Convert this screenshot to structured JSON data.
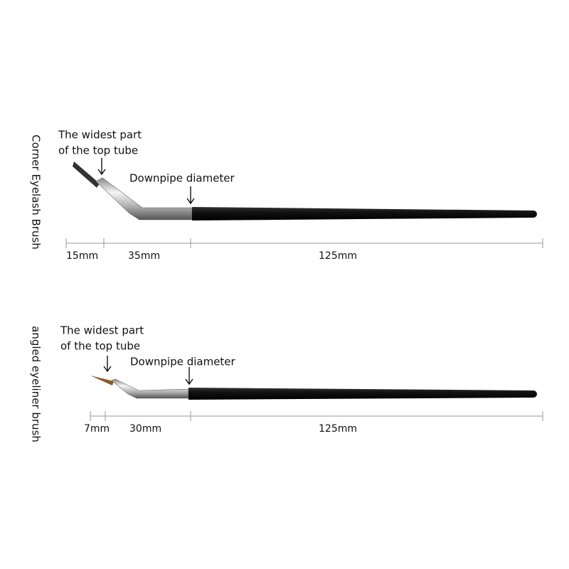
{
  "brushes": [
    {
      "name": "Corner Eyelash Brush",
      "widest_part": [
        "The widest part",
        "of the top tube"
      ],
      "downpipe": "Downpipe diameter",
      "measurements": [
        "15mm",
        "35mm",
        "125mm"
      ]
    },
    {
      "name": "angled eyeliner brush",
      "widest_part": [
        "The widest part",
        "of the top tube"
      ],
      "downpipe": "Downpipe diameter",
      "measurements": [
        "7mm",
        "30mm",
        "125mm"
      ]
    }
  ]
}
